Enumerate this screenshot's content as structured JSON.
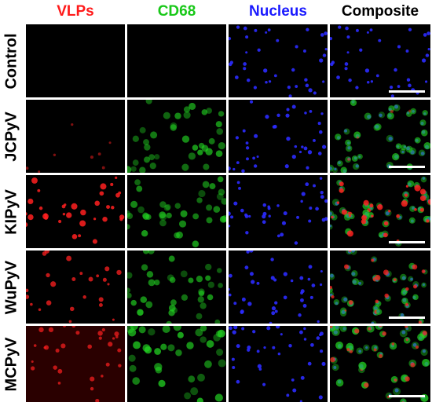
{
  "columns": [
    {
      "label": "VLPs",
      "color": "#ff1a1a"
    },
    {
      "label": "CD68",
      "color": "#19c819"
    },
    {
      "label": "Nucleus",
      "color": "#1a1aff"
    },
    {
      "label": "Composite",
      "color": "#000000"
    }
  ],
  "rows": [
    {
      "label": "Control",
      "vlp_intensity": 0.0,
      "cd68_intensity": 0.0
    },
    {
      "label": "JCPyV",
      "vlp_intensity": 0.2,
      "cd68_intensity": 0.8
    },
    {
      "label": "KIPyV",
      "vlp_intensity": 0.9,
      "cd68_intensity": 0.8
    },
    {
      "label": "WuPyV",
      "vlp_intensity": 0.7,
      "cd68_intensity": 0.7
    },
    {
      "label": "MCPyV",
      "vlp_intensity": 0.6,
      "cd68_intensity": 1.0
    }
  ]
}
